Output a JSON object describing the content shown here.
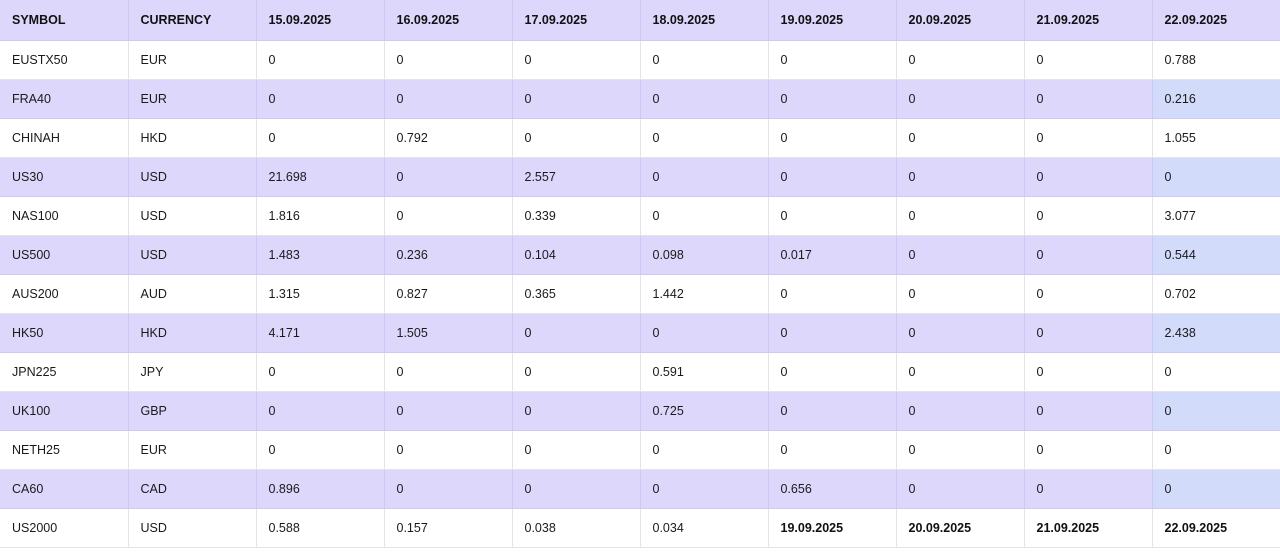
{
  "table": {
    "headers": [
      "SYMBOL",
      "CURRENCY",
      "15.09.2025",
      "16.09.2025",
      "17.09.2025",
      "18.09.2025",
      "19.09.2025",
      "20.09.2025",
      "21.09.2025",
      "22.09.2025"
    ],
    "rows": [
      [
        "EUSTX50",
        "EUR",
        "0",
        "0",
        "0",
        "0",
        "0",
        "0",
        "0",
        "0.788"
      ],
      [
        "FRA40",
        "EUR",
        "0",
        "0",
        "0",
        "0",
        "0",
        "0",
        "0",
        "0.216"
      ],
      [
        "CHINAH",
        "HKD",
        "0",
        "0.792",
        "0",
        "0",
        "0",
        "0",
        "0",
        "1.055"
      ],
      [
        "US30",
        "USD",
        "21.698",
        "0",
        "2.557",
        "0",
        "0",
        "0",
        "0",
        "0"
      ],
      [
        "NAS100",
        "USD",
        "1.816",
        "0",
        "0.339",
        "0",
        "0",
        "0",
        "0",
        "3.077"
      ],
      [
        "US500",
        "USD",
        "1.483",
        "0.236",
        "0.104",
        "0.098",
        "0.017",
        "0",
        "0",
        "0.544"
      ],
      [
        "AUS200",
        "AUD",
        "1.315",
        "0.827",
        "0.365",
        "1.442",
        "0",
        "0",
        "0",
        "0.702"
      ],
      [
        "HK50",
        "HKD",
        "4.171",
        "1.505",
        "0",
        "0",
        "0",
        "0",
        "0",
        "2.438"
      ],
      [
        "JPN225",
        "JPY",
        "0",
        "0",
        "0",
        "0.591",
        "0",
        "0",
        "0",
        "0"
      ],
      [
        "UK100",
        "GBP",
        "0",
        "0",
        "0",
        "0.725",
        "0",
        "0",
        "0",
        "0"
      ],
      [
        "NETH25",
        "EUR",
        "0",
        "0",
        "0",
        "0",
        "0",
        "0",
        "0",
        "0"
      ],
      [
        "CA60",
        "CAD",
        "0.896",
        "0",
        "0",
        "0",
        "0.656",
        "0",
        "0",
        "0"
      ],
      [
        "US2000",
        "USD",
        "0.588",
        "0.157",
        "0.038",
        "0.034",
        "19.09.2025",
        "20.09.2025",
        "21.09.2025",
        "22.09.2025"
      ]
    ]
  }
}
